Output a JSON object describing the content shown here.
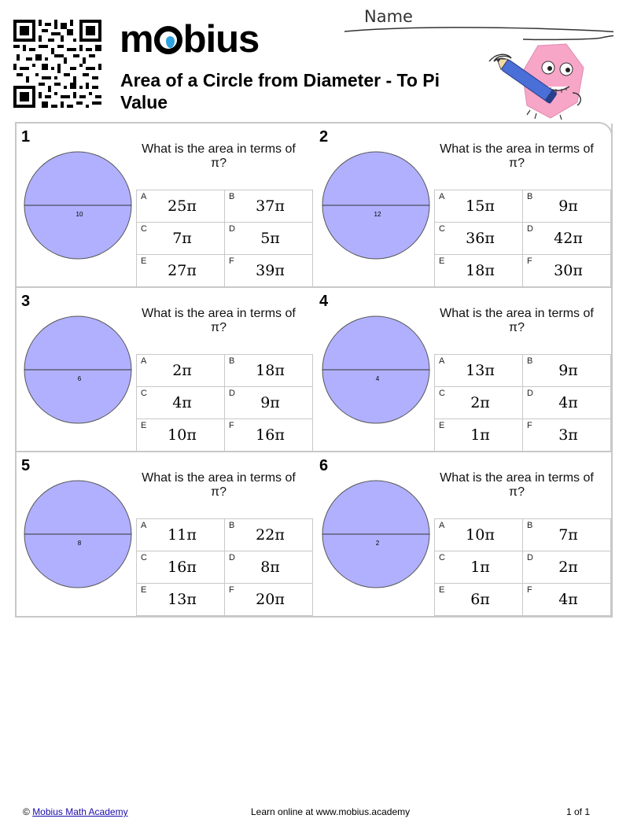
{
  "header": {
    "brand": "mobius",
    "title": "Area of a Circle from Diameter - To Pi Value",
    "name_label": "Name"
  },
  "question_text": "What is the area in terms of π?",
  "problems": [
    {
      "number": "1",
      "diameter": "10",
      "answers": [
        {
          "letter": "A",
          "value": "25π"
        },
        {
          "letter": "B",
          "value": "37π"
        },
        {
          "letter": "C",
          "value": "7π"
        },
        {
          "letter": "D",
          "value": "5π"
        },
        {
          "letter": "E",
          "value": "27π"
        },
        {
          "letter": "F",
          "value": "39π"
        }
      ]
    },
    {
      "number": "2",
      "diameter": "12",
      "answers": [
        {
          "letter": "A",
          "value": "15π"
        },
        {
          "letter": "B",
          "value": "9π"
        },
        {
          "letter": "C",
          "value": "36π"
        },
        {
          "letter": "D",
          "value": "42π"
        },
        {
          "letter": "E",
          "value": "18π"
        },
        {
          "letter": "F",
          "value": "30π"
        }
      ]
    },
    {
      "number": "3",
      "diameter": "6",
      "answers": [
        {
          "letter": "A",
          "value": "2π"
        },
        {
          "letter": "B",
          "value": "18π"
        },
        {
          "letter": "C",
          "value": "4π"
        },
        {
          "letter": "D",
          "value": "9π"
        },
        {
          "letter": "E",
          "value": "10π"
        },
        {
          "letter": "F",
          "value": "16π"
        }
      ]
    },
    {
      "number": "4",
      "diameter": "4",
      "answers": [
        {
          "letter": "A",
          "value": "13π"
        },
        {
          "letter": "B",
          "value": "9π"
        },
        {
          "letter": "C",
          "value": "2π"
        },
        {
          "letter": "D",
          "value": "4π"
        },
        {
          "letter": "E",
          "value": "1π"
        },
        {
          "letter": "F",
          "value": "3π"
        }
      ]
    },
    {
      "number": "5",
      "diameter": "8",
      "answers": [
        {
          "letter": "A",
          "value": "11π"
        },
        {
          "letter": "B",
          "value": "22π"
        },
        {
          "letter": "C",
          "value": "16π"
        },
        {
          "letter": "D",
          "value": "8π"
        },
        {
          "letter": "E",
          "value": "13π"
        },
        {
          "letter": "F",
          "value": "20π"
        }
      ]
    },
    {
      "number": "6",
      "diameter": "2",
      "answers": [
        {
          "letter": "A",
          "value": "10π"
        },
        {
          "letter": "B",
          "value": "7π"
        },
        {
          "letter": "C",
          "value": "1π"
        },
        {
          "letter": "D",
          "value": "2π"
        },
        {
          "letter": "E",
          "value": "6π"
        },
        {
          "letter": "F",
          "value": "4π"
        }
      ]
    }
  ],
  "footer": {
    "copyright_symbol": "©",
    "academy_link": "Mobius Math Academy",
    "learn_online": "Learn online at www.mobius.academy",
    "page": "1 of 1"
  },
  "colors": {
    "circle_fill": "#b0b0ff",
    "circle_stroke": "#555555",
    "border": "#c8c8c8",
    "logo_accent": "#2fa3df",
    "mascot_pink": "#f7a6c8",
    "pencil_blue": "#4a6fd6"
  }
}
